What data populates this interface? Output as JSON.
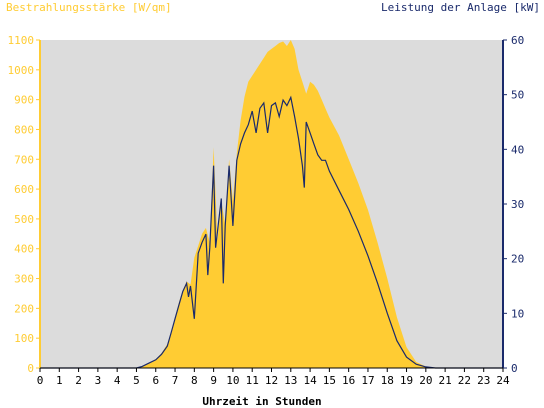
{
  "colors": {
    "irradiance": "#FFCC33",
    "power": "#1A2A6B",
    "plot_bg": "#DCDCDC",
    "axis_left": "#FFCC33",
    "axis_right": "#1A2A6B",
    "tick_text_bottom": "#000000"
  },
  "chart_data": {
    "type": "area",
    "xlabel": "Uhrzeit in Stunden",
    "left_axis_title": "Bestrahlungsstärke [W/qm]",
    "right_axis_title": "Leistung der Anlage [kW]",
    "xlim": [
      0,
      24
    ],
    "ylim_left": [
      0,
      1100
    ],
    "ylim_right": [
      0,
      60
    ],
    "x_ticks": [
      "0",
      "1",
      "2",
      "3",
      "4",
      "5",
      "6",
      "7",
      "8",
      "9",
      "10",
      "11",
      "12",
      "13",
      "14",
      "15",
      "16",
      "17",
      "18",
      "19",
      "20",
      "21",
      "22",
      "23",
      "24"
    ],
    "y_ticks_left": [
      "0",
      "100",
      "200",
      "300",
      "400",
      "500",
      "600",
      "700",
      "800",
      "900",
      "1000",
      "1100"
    ],
    "y_ticks_right": [
      "0",
      "10",
      "20",
      "30",
      "40",
      "50",
      "60"
    ],
    "grid": false,
    "series": [
      {
        "name": "Bestrahlungsstärke [W/qm]",
        "axis": "left",
        "type": "area",
        "points": [
          [
            0,
            0
          ],
          [
            5.0,
            0
          ],
          [
            5.3,
            5
          ],
          [
            5.6,
            15
          ],
          [
            6.0,
            30
          ],
          [
            6.3,
            50
          ],
          [
            6.6,
            80
          ],
          [
            6.8,
            120
          ],
          [
            7.0,
            170
          ],
          [
            7.2,
            220
          ],
          [
            7.4,
            260
          ],
          [
            7.6,
            290
          ],
          [
            7.8,
            280
          ],
          [
            8.0,
            370
          ],
          [
            8.2,
            410
          ],
          [
            8.4,
            450
          ],
          [
            8.6,
            470
          ],
          [
            8.8,
            420
          ],
          [
            9.0,
            740
          ],
          [
            9.2,
            430
          ],
          [
            9.4,
            560
          ],
          [
            9.6,
            480
          ],
          [
            9.8,
            700
          ],
          [
            10.0,
            560
          ],
          [
            10.2,
            720
          ],
          [
            10.4,
            830
          ],
          [
            10.6,
            910
          ],
          [
            10.8,
            960
          ],
          [
            11.0,
            980
          ],
          [
            11.2,
            1000
          ],
          [
            11.4,
            1020
          ],
          [
            11.6,
            1040
          ],
          [
            11.8,
            1060
          ],
          [
            12.0,
            1070
          ],
          [
            12.2,
            1080
          ],
          [
            12.4,
            1090
          ],
          [
            12.6,
            1095
          ],
          [
            12.8,
            1080
          ],
          [
            13.0,
            1100
          ],
          [
            13.2,
            1070
          ],
          [
            13.4,
            1000
          ],
          [
            13.6,
            960
          ],
          [
            13.8,
            920
          ],
          [
            14.0,
            960
          ],
          [
            14.2,
            950
          ],
          [
            14.4,
            930
          ],
          [
            14.6,
            900
          ],
          [
            14.8,
            870
          ],
          [
            15.0,
            840
          ],
          [
            15.5,
            780
          ],
          [
            16.0,
            700
          ],
          [
            16.5,
            620
          ],
          [
            17.0,
            530
          ],
          [
            17.5,
            420
          ],
          [
            18.0,
            300
          ],
          [
            18.5,
            170
          ],
          [
            19.0,
            70
          ],
          [
            19.5,
            20
          ],
          [
            20.0,
            5
          ],
          [
            20.5,
            0
          ],
          [
            24,
            0
          ]
        ]
      },
      {
        "name": "Leistung der Anlage [kW]",
        "axis": "right",
        "type": "line",
        "points": [
          [
            0,
            0
          ],
          [
            5.0,
            0
          ],
          [
            5.3,
            0.3
          ],
          [
            5.6,
            0.8
          ],
          [
            6.0,
            1.5
          ],
          [
            6.3,
            2.5
          ],
          [
            6.6,
            4.0
          ],
          [
            6.8,
            6.5
          ],
          [
            7.0,
            9
          ],
          [
            7.2,
            11.5
          ],
          [
            7.4,
            14
          ],
          [
            7.6,
            15.5
          ],
          [
            7.7,
            13
          ],
          [
            7.8,
            15
          ],
          [
            8.0,
            9
          ],
          [
            8.2,
            21
          ],
          [
            8.4,
            23
          ],
          [
            8.6,
            24.5
          ],
          [
            8.7,
            17
          ],
          [
            8.8,
            22
          ],
          [
            9.0,
            37
          ],
          [
            9.1,
            22
          ],
          [
            9.2,
            25
          ],
          [
            9.4,
            31
          ],
          [
            9.5,
            15.5
          ],
          [
            9.6,
            26
          ],
          [
            9.8,
            37
          ],
          [
            10.0,
            26
          ],
          [
            10.2,
            38
          ],
          [
            10.4,
            41
          ],
          [
            10.6,
            43
          ],
          [
            10.8,
            44.5
          ],
          [
            11.0,
            47
          ],
          [
            11.2,
            43
          ],
          [
            11.4,
            47.5
          ],
          [
            11.6,
            48.5
          ],
          [
            11.8,
            43
          ],
          [
            12.0,
            48
          ],
          [
            12.2,
            48.5
          ],
          [
            12.4,
            46
          ],
          [
            12.6,
            49
          ],
          [
            12.8,
            48
          ],
          [
            13.0,
            49.5
          ],
          [
            13.2,
            46
          ],
          [
            13.4,
            42
          ],
          [
            13.6,
            37
          ],
          [
            13.7,
            33
          ],
          [
            13.8,
            45
          ],
          [
            14.0,
            43
          ],
          [
            14.2,
            41
          ],
          [
            14.4,
            39
          ],
          [
            14.6,
            38
          ],
          [
            14.8,
            38
          ],
          [
            15.0,
            36
          ],
          [
            15.5,
            32.5
          ],
          [
            16.0,
            29
          ],
          [
            16.5,
            25
          ],
          [
            17.0,
            20.5
          ],
          [
            17.5,
            15.5
          ],
          [
            18.0,
            10
          ],
          [
            18.5,
            5
          ],
          [
            19.0,
            2
          ],
          [
            19.5,
            0.7
          ],
          [
            20.0,
            0.2
          ],
          [
            20.5,
            0
          ],
          [
            24,
            0
          ]
        ]
      }
    ]
  }
}
